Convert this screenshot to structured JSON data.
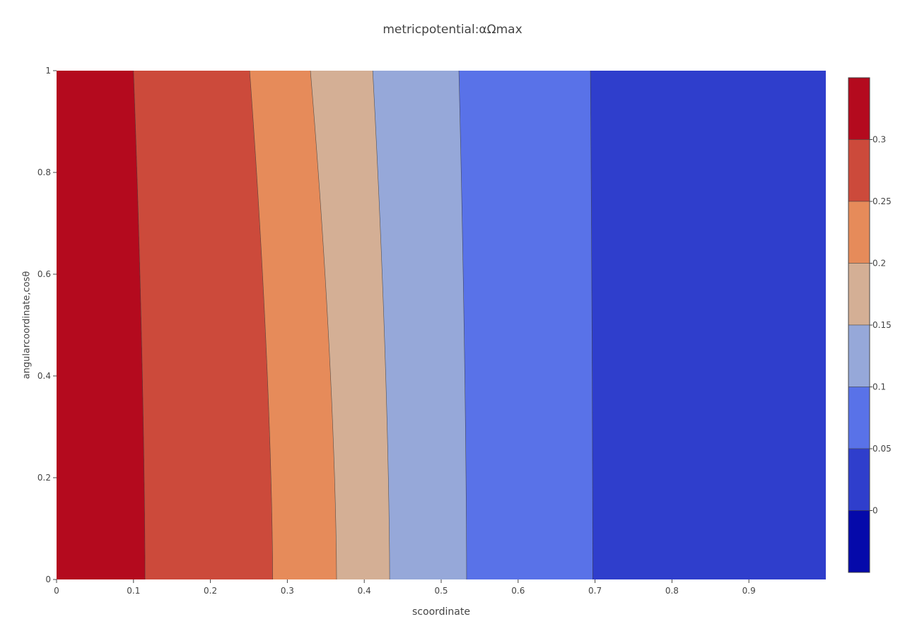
{
  "chart_data": {
    "type": "contour",
    "title": "metricpotential:αΩmax",
    "xlabel": "scoordinate",
    "ylabel": "angularcoordinate,cosθ",
    "xlim": [
      0,
      1
    ],
    "ylim": [
      0,
      1
    ],
    "x_ticks": [
      0,
      0.1,
      0.2,
      0.3,
      0.4,
      0.5,
      0.6,
      0.7,
      0.8,
      0.9
    ],
    "x_tick_labels": [
      "0",
      "0.1",
      "0.2",
      "0.3",
      "0.4",
      "0.5",
      "0.6",
      "0.7",
      "0.8",
      "0.9"
    ],
    "y_ticks": [
      0,
      0.2,
      0.4,
      0.6,
      0.8,
      1
    ],
    "y_tick_labels": [
      "0",
      "0.2",
      "0.4",
      "0.6",
      "0.8",
      "1"
    ],
    "contour_levels": [
      0.05,
      0.1,
      0.15,
      0.2,
      0.25,
      0.3
    ],
    "contour_lines": [
      {
        "level": 0.3,
        "s_at_y0": 0.115,
        "s_at_y1": 0.1
      },
      {
        "level": 0.25,
        "s_at_y0": 0.281,
        "s_at_y1": 0.251
      },
      {
        "level": 0.2,
        "s_at_y0": 0.364,
        "s_at_y1": 0.33
      },
      {
        "level": 0.15,
        "s_at_y0": 0.433,
        "s_at_y1": 0.411
      },
      {
        "level": 0.1,
        "s_at_y0": 0.533,
        "s_at_y1": 0.523
      },
      {
        "level": 0.05,
        "s_at_y0": 0.697,
        "s_at_y1": 0.694
      }
    ],
    "bands_left_to_right": [
      {
        "range": [
          0.3,
          0.35
        ],
        "color": "#b40a1e"
      },
      {
        "range": [
          0.25,
          0.3
        ],
        "color": "#cc4a3b"
      },
      {
        "range": [
          0.2,
          0.25
        ],
        "color": "#e68b5a"
      },
      {
        "range": [
          0.15,
          0.2
        ],
        "color": "#d4af95"
      },
      {
        "range": [
          0.1,
          0.15
        ],
        "color": "#96a8d9"
      },
      {
        "range": [
          0.05,
          0.1
        ],
        "color": "#5972e8"
      },
      {
        "range": [
          0.0,
          0.05
        ],
        "color": "#2f3ecc"
      }
    ],
    "colorbar": {
      "ticks": [
        0.3,
        0.25,
        0.2,
        0.15,
        0.1,
        0.05,
        0
      ],
      "tick_labels": [
        "0.3",
        "0.25",
        "0.2",
        "0.15",
        "0.1",
        "0.05",
        "0"
      ],
      "segments_top_to_bottom": [
        {
          "range": [
            0.3,
            0.35
          ],
          "color": "#b40a1e"
        },
        {
          "range": [
            0.25,
            0.3
          ],
          "color": "#cc4a3b"
        },
        {
          "range": [
            0.2,
            0.25
          ],
          "color": "#e68b5a"
        },
        {
          "range": [
            0.15,
            0.2
          ],
          "color": "#d4af95"
        },
        {
          "range": [
            0.1,
            0.15
          ],
          "color": "#96a8d9"
        },
        {
          "range": [
            0.05,
            0.1
          ],
          "color": "#5972e8"
        },
        {
          "range": [
            0.0,
            0.05
          ],
          "color": "#2f3ecc"
        },
        {
          "range": [
            -0.05,
            0.0
          ],
          "color": "#0509aa"
        }
      ]
    },
    "grid": false,
    "colorscale": "coolwarm (reversed: high=red, low=blue)"
  }
}
